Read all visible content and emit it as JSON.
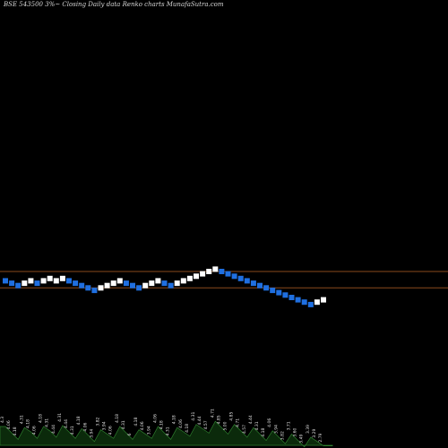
{
  "header": {
    "title": "BSE 543500  3%~  Closing Daily data  Renko  charts MunafaSutra.com"
  },
  "colors": {
    "up": "#ffffff",
    "down": "#1f6fe0",
    "resistance": "#8a4a1c",
    "volume_fill": "#0b2a0b",
    "volume_line": "#2e7d2e",
    "background": "#000000"
  },
  "chart_data": {
    "type": "renko",
    "brick_size_pct": 3,
    "y_axis_range": [
      2.7,
      5.05
    ],
    "bricks": [
      {
        "dir": "down",
        "value": 4.31
      },
      {
        "dir": "down",
        "value": 4.18
      },
      {
        "dir": "down",
        "value": 4.06
      },
      {
        "dir": "up",
        "value": 4.18
      },
      {
        "dir": "up",
        "value": 4.31
      },
      {
        "dir": "down",
        "value": 4.18
      },
      {
        "dir": "up",
        "value": 4.31
      },
      {
        "dir": "up",
        "value": 4.44
      },
      {
        "dir": "up",
        "value": 4.31
      },
      {
        "dir": "up",
        "value": 4.44
      },
      {
        "dir": "down",
        "value": 4.31
      },
      {
        "dir": "down",
        "value": 4.18
      },
      {
        "dir": "down",
        "value": 4.06
      },
      {
        "dir": "down",
        "value": 3.94
      },
      {
        "dir": "down",
        "value": 3.82
      },
      {
        "dir": "up",
        "value": 3.94
      },
      {
        "dir": "up",
        "value": 4.06
      },
      {
        "dir": "up",
        "value": 4.18
      },
      {
        "dir": "up",
        "value": 4.31
      },
      {
        "dir": "down",
        "value": 4.18
      },
      {
        "dir": "down",
        "value": 4.06
      },
      {
        "dir": "down",
        "value": 3.94
      },
      {
        "dir": "up",
        "value": 4.06
      },
      {
        "dir": "up",
        "value": 4.18
      },
      {
        "dir": "up",
        "value": 4.31
      },
      {
        "dir": "down",
        "value": 4.18
      },
      {
        "dir": "down",
        "value": 4.06
      },
      {
        "dir": "up",
        "value": 4.18
      },
      {
        "dir": "up",
        "value": 4.31
      },
      {
        "dir": "up",
        "value": 4.44
      },
      {
        "dir": "up",
        "value": 4.57
      },
      {
        "dir": "up",
        "value": 4.71
      },
      {
        "dir": "up",
        "value": 4.85
      },
      {
        "dir": "up",
        "value": 5.0
      },
      {
        "dir": "down",
        "value": 4.85
      },
      {
        "dir": "down",
        "value": 4.71
      },
      {
        "dir": "down",
        "value": 4.57
      },
      {
        "dir": "down",
        "value": 4.44
      },
      {
        "dir": "down",
        "value": 4.31
      },
      {
        "dir": "down",
        "value": 4.18
      },
      {
        "dir": "down",
        "value": 4.06
      },
      {
        "dir": "down",
        "value": 3.94
      },
      {
        "dir": "down",
        "value": 3.82
      },
      {
        "dir": "down",
        "value": 3.71
      },
      {
        "dir": "down",
        "value": 3.6
      },
      {
        "dir": "down",
        "value": 3.49
      },
      {
        "dir": "down",
        "value": 3.39
      },
      {
        "dir": "down",
        "value": 3.29
      },
      {
        "dir": "down",
        "value": 3.19
      },
      {
        "dir": "up",
        "value": 3.29
      },
      {
        "dir": "up",
        "value": 3.39
      }
    ],
    "resistance_levels": [
      4.85,
      3.94
    ],
    "volume_labels": [
      "4.3",
      "4.06",
      "4.18",
      "4.31",
      "4.18",
      "4.06",
      "4.18",
      "4.31",
      "4.44",
      "4.31",
      "4.44",
      "4.31",
      "4.18",
      "4.06",
      "3.94",
      "3.82",
      "3.94",
      "4.06",
      "4.18",
      "4.31",
      "6",
      "4.18",
      "4.06",
      "3.94",
      "4.06",
      "4.18",
      "4.31",
      "4.18",
      "4.06",
      "4.18",
      "4.31",
      "4.44",
      "4.57",
      "4.71",
      "4.85",
      "5.00",
      "4.85",
      "4.71",
      "4.57",
      "4.44",
      "4.31",
      "4.18",
      "4.06",
      "3.94",
      "3.82",
      "3.71",
      "3.60",
      "3.49",
      "3.39",
      "3.29",
      "2.79",
      "2.95"
    ]
  }
}
